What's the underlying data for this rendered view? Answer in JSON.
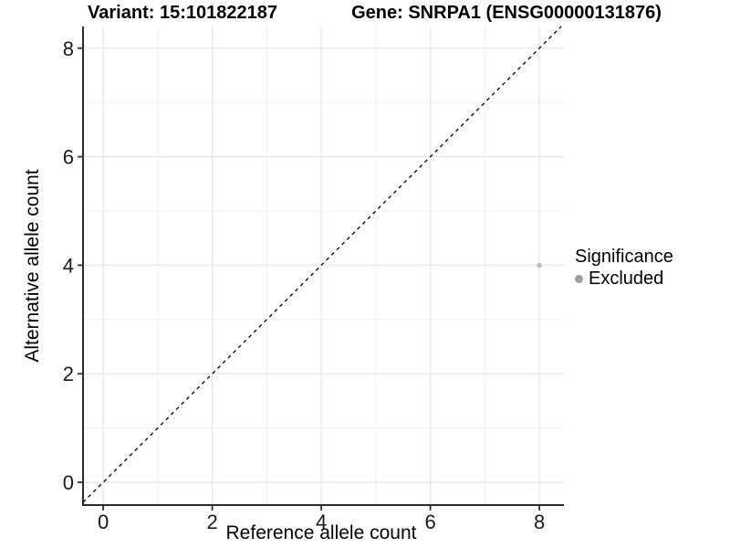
{
  "titles": {
    "left": "Variant: 15:101822187",
    "right": "Gene: SNRPA1 (ENSG00000131876)"
  },
  "legend": {
    "title": "Significance",
    "items": [
      {
        "label": "Excluded",
        "key_color": "#9e9e9e"
      }
    ]
  },
  "colors": {
    "background": "#ffffff",
    "grid_major": "#e6e6e6",
    "grid_minor": "#f0f0f0",
    "axis_line": "#2b2b2b",
    "tick_mark": "#333333",
    "tick_label": "#1a1a1a",
    "identity_line": "#111111",
    "point": "#bdbdbd"
  },
  "chart_data": {
    "type": "scatter",
    "title_left": "Variant: 15:101822187",
    "title_right": "Gene: SNRPA1 (ENSG00000131876)",
    "xlabel": "Reference allele count",
    "ylabel": "Alternative allele count",
    "xlim": [
      -0.37,
      8.45
    ],
    "ylim": [
      -0.42,
      8.4
    ],
    "xticks": [
      0,
      2,
      4,
      6,
      8
    ],
    "yticks": [
      0,
      2,
      4,
      6,
      8
    ],
    "grid": "on",
    "grid_step": 1,
    "legend_position": "right",
    "series": [
      {
        "name": "Excluded",
        "points": [
          {
            "x": 8,
            "y": 4
          }
        ],
        "color": "#bdbdbd"
      }
    ],
    "reference_line": {
      "type": "identity",
      "equation": "y = x",
      "style": "dashed",
      "color": "#111111"
    }
  }
}
